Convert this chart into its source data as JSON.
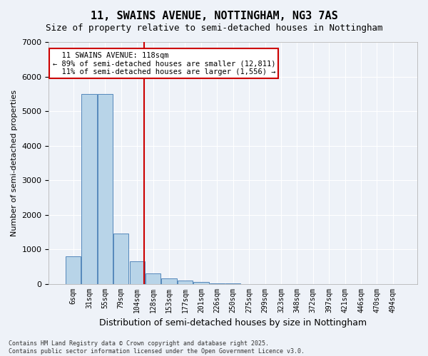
{
  "title": "11, SWAINS AVENUE, NOTTINGHAM, NG3 7AS",
  "subtitle": "Size of property relative to semi-detached houses in Nottingham",
  "xlabel": "Distribution of semi-detached houses by size in Nottingham",
  "ylabel": "Number of semi-detached properties",
  "footer": "Contains HM Land Registry data © Crown copyright and database right 2025.\nContains public sector information licensed under the Open Government Licence v3.0.",
  "bin_labels": [
    "6sqm",
    "31sqm",
    "55sqm",
    "79sqm",
    "104sqm",
    "128sqm",
    "153sqm",
    "177sqm",
    "201sqm",
    "226sqm",
    "250sqm",
    "275sqm",
    "299sqm",
    "323sqm",
    "348sqm",
    "372sqm",
    "397sqm",
    "421sqm",
    "446sqm",
    "470sqm",
    "494sqm"
  ],
  "bar_values": [
    800,
    5500,
    5500,
    1450,
    650,
    300,
    150,
    100,
    60,
    10,
    5,
    0,
    0,
    0,
    0,
    0,
    0,
    0,
    0,
    0,
    0
  ],
  "bar_color": "#b8d4e8",
  "bar_edge_color": "#5588bb",
  "red_line_x": 4.45,
  "highlight_line_color": "#cc0000",
  "property_label": "11 SWAINS AVENUE: 118sqm",
  "smaller_pct": "89%",
  "smaller_count": "12,811",
  "larger_pct": "11%",
  "larger_count": "1,556",
  "annotation_box_color": "#cc0000",
  "ylim": [
    0,
    7000
  ],
  "yticks": [
    0,
    1000,
    2000,
    3000,
    4000,
    5000,
    6000,
    7000
  ],
  "background_color": "#eef2f8",
  "grid_color": "#ffffff"
}
